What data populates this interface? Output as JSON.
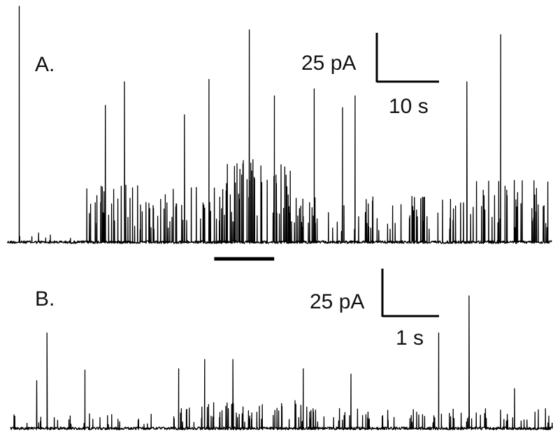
{
  "panels": {
    "a": {
      "label": "A.",
      "scale_bar": {
        "amplitude_label": "25 pA",
        "time_label": "10 s"
      },
      "event_bar": "drug application marker"
    },
    "b": {
      "label": "B.",
      "scale_bar": {
        "amplitude_label": "25 pA",
        "time_label": "1 s"
      }
    }
  },
  "colors": {
    "trace": "#000000",
    "background": "#ffffff",
    "text": "#111111"
  },
  "chart_data": [
    {
      "type": "line",
      "panel": "A",
      "description": "Current trace with spontaneous synaptic events; baseline quiet, then burst of activity",
      "scale": {
        "amplitude_pA": 25,
        "time_s": 10
      },
      "segments": [
        {
          "start": 0.0,
          "end": 0.14,
          "activity": 0.08
        },
        {
          "start": 0.14,
          "end": 0.38,
          "activity": 0.35
        },
        {
          "start": 0.38,
          "end": 0.52,
          "activity": 0.5
        },
        {
          "start": 0.52,
          "end": 0.86,
          "activity": 0.28
        },
        {
          "start": 0.86,
          "end": 1.0,
          "activity": 0.38
        }
      ],
      "peaks": [
        {
          "t": 0.022,
          "h": 1.0
        },
        {
          "t": 0.18,
          "h": 0.58
        },
        {
          "t": 0.215,
          "h": 0.68
        },
        {
          "t": 0.325,
          "h": 0.54
        },
        {
          "t": 0.37,
          "h": 0.69
        },
        {
          "t": 0.444,
          "h": 0.9
        },
        {
          "t": 0.49,
          "h": 0.62
        },
        {
          "t": 0.563,
          "h": 0.65
        },
        {
          "t": 0.615,
          "h": 0.57
        },
        {
          "t": 0.638,
          "h": 0.62
        },
        {
          "t": 0.843,
          "h": 0.68
        },
        {
          "t": 0.905,
          "h": 0.88
        }
      ],
      "event_marker": {
        "start": 0.38,
        "end": 0.49
      }
    },
    {
      "type": "line",
      "panel": "B",
      "description": "Expanded timebase trace of spontaneous synaptic events",
      "scale": {
        "amplitude_pA": 25,
        "time_s": 1
      },
      "segments": [
        {
          "start": 0.0,
          "end": 0.3,
          "activity": 0.16
        },
        {
          "start": 0.3,
          "end": 0.55,
          "activity": 0.3
        },
        {
          "start": 0.55,
          "end": 1.0,
          "activity": 0.22
        }
      ],
      "peaks": [
        {
          "t": 0.067,
          "h": 0.72
        },
        {
          "t": 0.048,
          "h": 0.36
        },
        {
          "t": 0.137,
          "h": 0.44
        },
        {
          "t": 0.31,
          "h": 0.45
        },
        {
          "t": 0.358,
          "h": 0.52
        },
        {
          "t": 0.41,
          "h": 0.52
        },
        {
          "t": 0.54,
          "h": 0.45
        },
        {
          "t": 0.628,
          "h": 0.41
        },
        {
          "t": 0.79,
          "h": 0.72
        },
        {
          "t": 0.846,
          "h": 1.0
        },
        {
          "t": 0.93,
          "h": 0.3
        }
      ]
    }
  ]
}
